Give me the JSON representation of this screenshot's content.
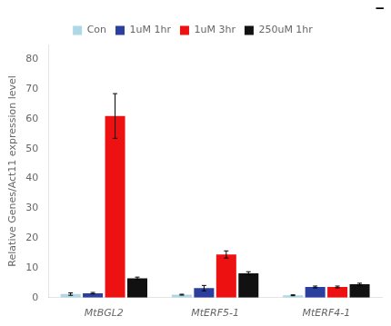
{
  "chart_data": {
    "type": "bar",
    "y_label": "Relative Genes/Act11 expression level",
    "annotation": "—",
    "categories": [
      "MtBGL2",
      "MtERF5-1",
      "MtERF4-1"
    ],
    "series": [
      {
        "name": "Con",
        "color": "#add8e6",
        "values": [
          1.2,
          1.0,
          0.8
        ],
        "errors": [
          0.4,
          0.15,
          0.15
        ]
      },
      {
        "name": "1uM 1hr",
        "color": "#2b3f9e",
        "values": [
          1.5,
          3.2,
          3.6
        ],
        "errors": [
          0.25,
          0.9,
          0.3
        ]
      },
      {
        "name": "1uM 3hr",
        "color": "#ee1111",
        "values": [
          61.0,
          14.5,
          3.6
        ],
        "errors": [
          7.5,
          1.2,
          0.3
        ]
      },
      {
        "name": "250uM 1hr",
        "color": "#111111",
        "values": [
          6.5,
          8.2,
          4.5
        ],
        "errors": [
          0.4,
          0.5,
          0.35
        ]
      }
    ],
    "ylim": [
      0,
      85
    ],
    "yticks": [
      0,
      10,
      20,
      30,
      40,
      50,
      60,
      70,
      80
    ],
    "grid": false,
    "legend": "top"
  }
}
